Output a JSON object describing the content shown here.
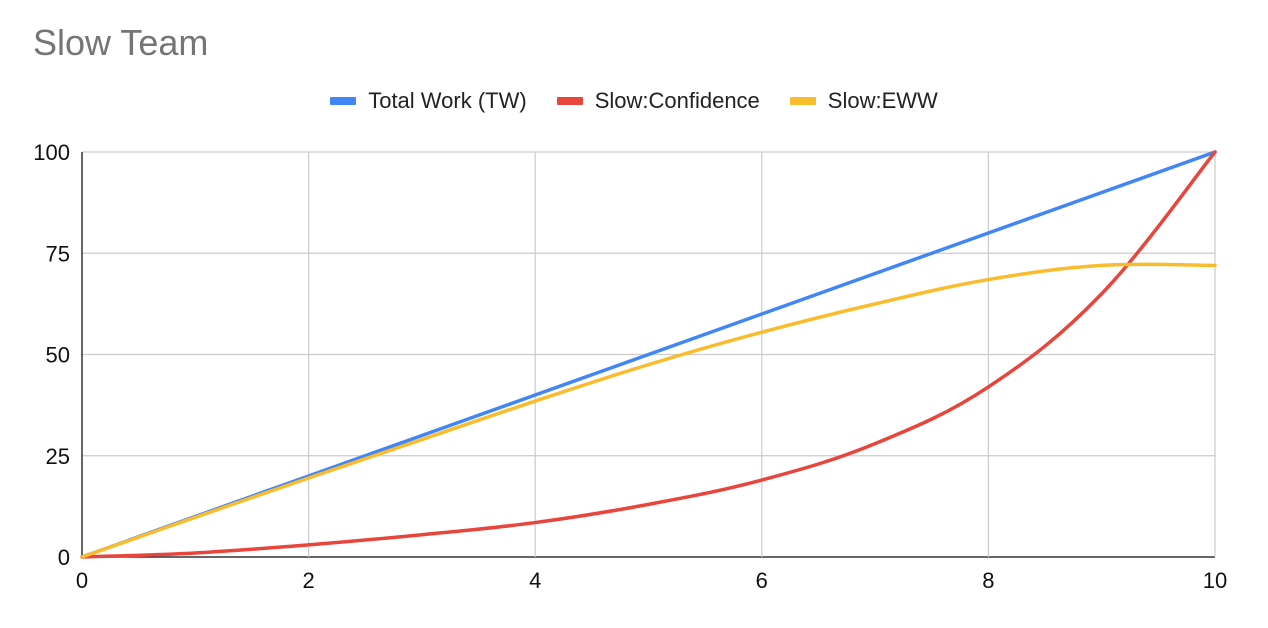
{
  "chart_data": {
    "type": "line",
    "title": "Slow Team",
    "xlabel": "",
    "ylabel": "",
    "xlim": [
      0,
      10
    ],
    "ylim": [
      0,
      100
    ],
    "xticks": [
      0,
      2,
      4,
      6,
      8,
      10
    ],
    "yticks": [
      0,
      25,
      50,
      75,
      100
    ],
    "grid": true,
    "legend_position": "top",
    "series": [
      {
        "name": "Total Work (TW)",
        "color": "#4285f4",
        "x": [
          0,
          1,
          2,
          3,
          4,
          5,
          6,
          7,
          8,
          9,
          10
        ],
        "values": [
          0,
          10,
          20,
          30,
          40,
          50,
          60,
          70,
          80,
          90,
          100
        ]
      },
      {
        "name": "Slow:Confidence",
        "color": "#e8453c",
        "x": [
          0,
          1,
          2,
          3,
          4,
          5,
          6,
          7,
          8,
          9,
          10
        ],
        "values": [
          0,
          1,
          3,
          5.5,
          8.5,
          13,
          19,
          28,
          42,
          65,
          100
        ]
      },
      {
        "name": "Slow:EWW",
        "color": "#f9bc2d",
        "x": [
          0,
          1,
          2,
          3,
          4,
          5,
          6,
          7,
          8,
          9,
          10
        ],
        "values": [
          0,
          9.8,
          19.5,
          29,
          38.5,
          47.5,
          55.5,
          62.5,
          68.5,
          72,
          72
        ]
      }
    ]
  }
}
